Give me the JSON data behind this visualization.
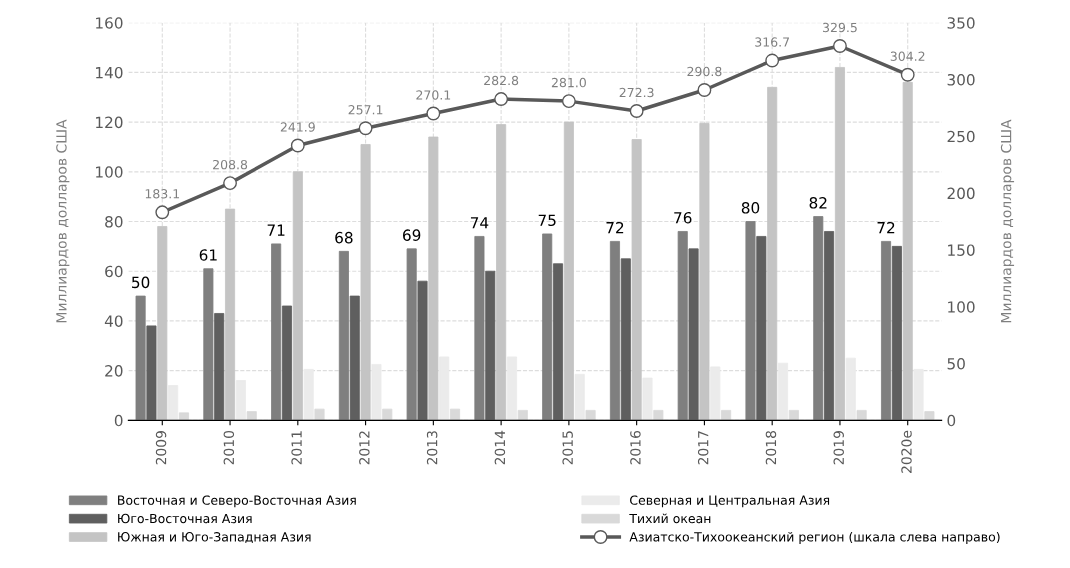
{
  "chart_data": {
    "type": "bar",
    "ylabel": "Миллиардов долларов США",
    "y2label": "Миллиардов долларов США",
    "categories": [
      "2009",
      "2010",
      "2011",
      "2012",
      "2013",
      "2014",
      "2015",
      "2016",
      "2017",
      "2018",
      "2019",
      "2020e"
    ],
    "series": [
      {
        "name": "Восточная и Северо-Восточная Азия",
        "color": "#7f7f7f",
        "values": [
          50,
          61,
          71,
          68,
          69,
          74,
          75,
          72,
          76,
          80,
          82,
          72
        ],
        "value_labels": [
          "50",
          "61",
          "71",
          "68",
          "69",
          "74",
          "75",
          "72",
          "76",
          "80",
          "82",
          "72"
        ]
      },
      {
        "name": "Юго-Восточная Азия",
        "color": "#5f5f5f",
        "values": [
          38,
          43,
          46,
          50,
          56,
          60,
          63,
          65,
          69,
          74,
          76,
          70
        ]
      },
      {
        "name": "Южная и Юго-Западная Азия",
        "color": "#c4c4c4",
        "values": [
          78,
          85,
          100,
          111,
          114,
          119,
          120,
          113,
          119.5,
          134,
          142,
          136
        ]
      },
      {
        "name": "Северная и Центральная Азия",
        "color": "#ebebeb",
        "values": [
          14,
          16,
          20.5,
          22.5,
          25.5,
          25.5,
          18.5,
          17,
          21.5,
          23,
          25,
          20.5
        ]
      },
      {
        "name": "Тихий океан",
        "color": "#d9d9d9",
        "values": [
          3,
          3.5,
          4.5,
          4.5,
          4.5,
          4,
          4,
          4,
          4,
          4,
          4,
          3.5
        ]
      },
      {
        "name": "Азиатско-Тихоокеанский регион (шкала слева направо)",
        "type": "line",
        "axis": "y2",
        "color": "#595959",
        "marker": "circle",
        "values": [
          183.1,
          208.8,
          241.9,
          257.1,
          270.1,
          282.8,
          281.0,
          272.3,
          290.8,
          316.7,
          329.5,
          304.2
        ],
        "value_labels": [
          "183.1",
          "208.8",
          "241.9",
          "257.1",
          "270.1",
          "282.8",
          "281.0",
          "272.3",
          "290.8",
          "316.7",
          "329.5",
          "304.2"
        ]
      }
    ],
    "ylim": [
      0,
      160
    ],
    "yticks": [
      0,
      20,
      40,
      60,
      80,
      100,
      120,
      140,
      160
    ],
    "y2lim": [
      0,
      350
    ],
    "y2ticks": [
      0,
      50,
      100,
      150,
      200,
      250,
      300,
      350
    ],
    "grid": true,
    "legend": "bottom"
  }
}
